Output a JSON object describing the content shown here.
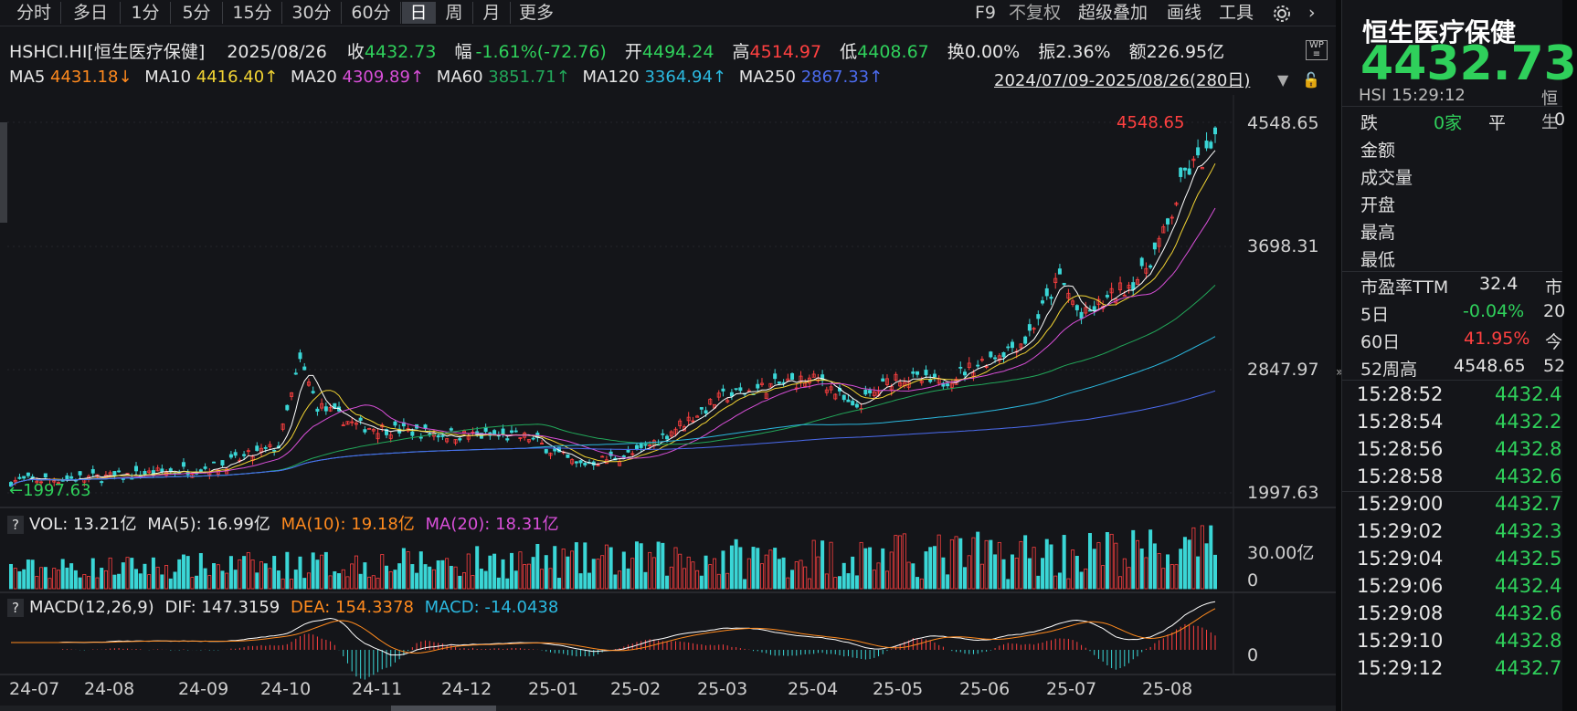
{
  "toolbar": {
    "tabs": [
      "分时",
      "多日",
      "1分",
      "5分",
      "15分",
      "30分",
      "60分",
      "日",
      "周",
      "月",
      "更多"
    ],
    "active_tab": "日",
    "tools": [
      "F9",
      "不复权",
      "超级叠加",
      "画线",
      "工具"
    ]
  },
  "quote": {
    "code": "HSHCI.HI[恒生医疗保健]",
    "date": "2025/08/26",
    "close_label": "收",
    "close": "4432.73",
    "change_label": "幅",
    "change": "-1.61%(-72.76)",
    "open_label": "开",
    "open": "4494.24",
    "high_label": "高",
    "high": "4514.97",
    "low_label": "低",
    "low": "4408.67",
    "turnover_label": "换",
    "turnover": "0.00%",
    "amplitude_label": "振",
    "amplitude": "2.36%",
    "amount_label": "额",
    "amount": "226.95亿"
  },
  "ma_row": {
    "ma5_label": "MA5",
    "ma5": "4431.18↓",
    "ma10_label": "MA10",
    "ma10": "4416.40↑",
    "ma20_label": "MA20",
    "ma20": "4309.89↑",
    "ma60_label": "MA60",
    "ma60": "3851.71↑",
    "ma120_label": "MA120",
    "ma120": "3364.94↑",
    "ma250_label": "MA250",
    "ma250": "2867.33↑",
    "range": "2024/07/09-2025/08/26(280日)"
  },
  "price_axis": [
    "4548.65",
    "3698.31",
    "2847.97",
    "1997.63"
  ],
  "price_annotations": {
    "max": "4548.65",
    "min": "1997.63"
  },
  "vol_row": {
    "q": "?",
    "vol": "VOL: 13.21亿",
    "ma5": "MA(5): 16.99亿",
    "ma10": "MA(10): 19.18亿",
    "ma20": "MA(20): 18.31亿",
    "axis_top": "30.00亿",
    "axis_zero": "0"
  },
  "macd_row": {
    "q": "?",
    "name": "MACD(12,26,9)",
    "dif": "DIF: 147.3159",
    "dea": "DEA: 154.3378",
    "macd": "MACD: -14.0438",
    "axis_zero": "0"
  },
  "x_axis": [
    "24-07",
    "24-08",
    "24-09",
    "24-10",
    "24-11",
    "24-12",
    "25-01",
    "25-02",
    "25-03",
    "25-04",
    "25-05",
    "25-06",
    "25-07",
    "25-08"
  ],
  "side": {
    "title": "恒生医疗保健",
    "price": "4432.73",
    "sub_code": "HSI",
    "sub_time": "15:29:12",
    "sub_cut": "恒生",
    "fall_label": "跌",
    "fall_val": "0家",
    "flat_label": "平",
    "flat_cut": "0",
    "labels": [
      "金额",
      "成交量",
      "开盘",
      "最高",
      "最低"
    ],
    "pe_label": "市盈率TTM",
    "pe_val": "32.4",
    "pe_cut": "市",
    "d5_label": "5日",
    "d5_val": "-0.04%",
    "d5_cut": "20",
    "d60_label": "60日",
    "d60_val": "41.95%",
    "d60_cut": "今",
    "w52_label": "52周高",
    "w52_val": "4548.65",
    "w52_cut": "52",
    "ticks": [
      {
        "time": "15:28:52",
        "price": "4432.4"
      },
      {
        "time": "15:28:54",
        "price": "4432.2"
      },
      {
        "time": "15:28:56",
        "price": "4432.8"
      },
      {
        "time": "15:28:58",
        "price": "4432.6"
      },
      {
        "time": "15:29:00",
        "price": "4432.7"
      },
      {
        "time": "15:29:02",
        "price": "4432.3"
      },
      {
        "time": "15:29:04",
        "price": "4432.5"
      },
      {
        "time": "15:29:06",
        "price": "4432.4"
      },
      {
        "time": "15:29:08",
        "price": "4432.6"
      },
      {
        "time": "15:29:10",
        "price": "4432.8"
      },
      {
        "time": "15:29:12",
        "price": "4432.7"
      }
    ]
  },
  "colors": {
    "up": "#ff4040",
    "down": "#2fd05b",
    "ma5": "#ffffff",
    "ma10": "#f2d433",
    "ma20": "#d84fd8",
    "ma60": "#22a85a",
    "ma120": "#2bb9e0",
    "ma250": "#4c6cf0"
  }
}
